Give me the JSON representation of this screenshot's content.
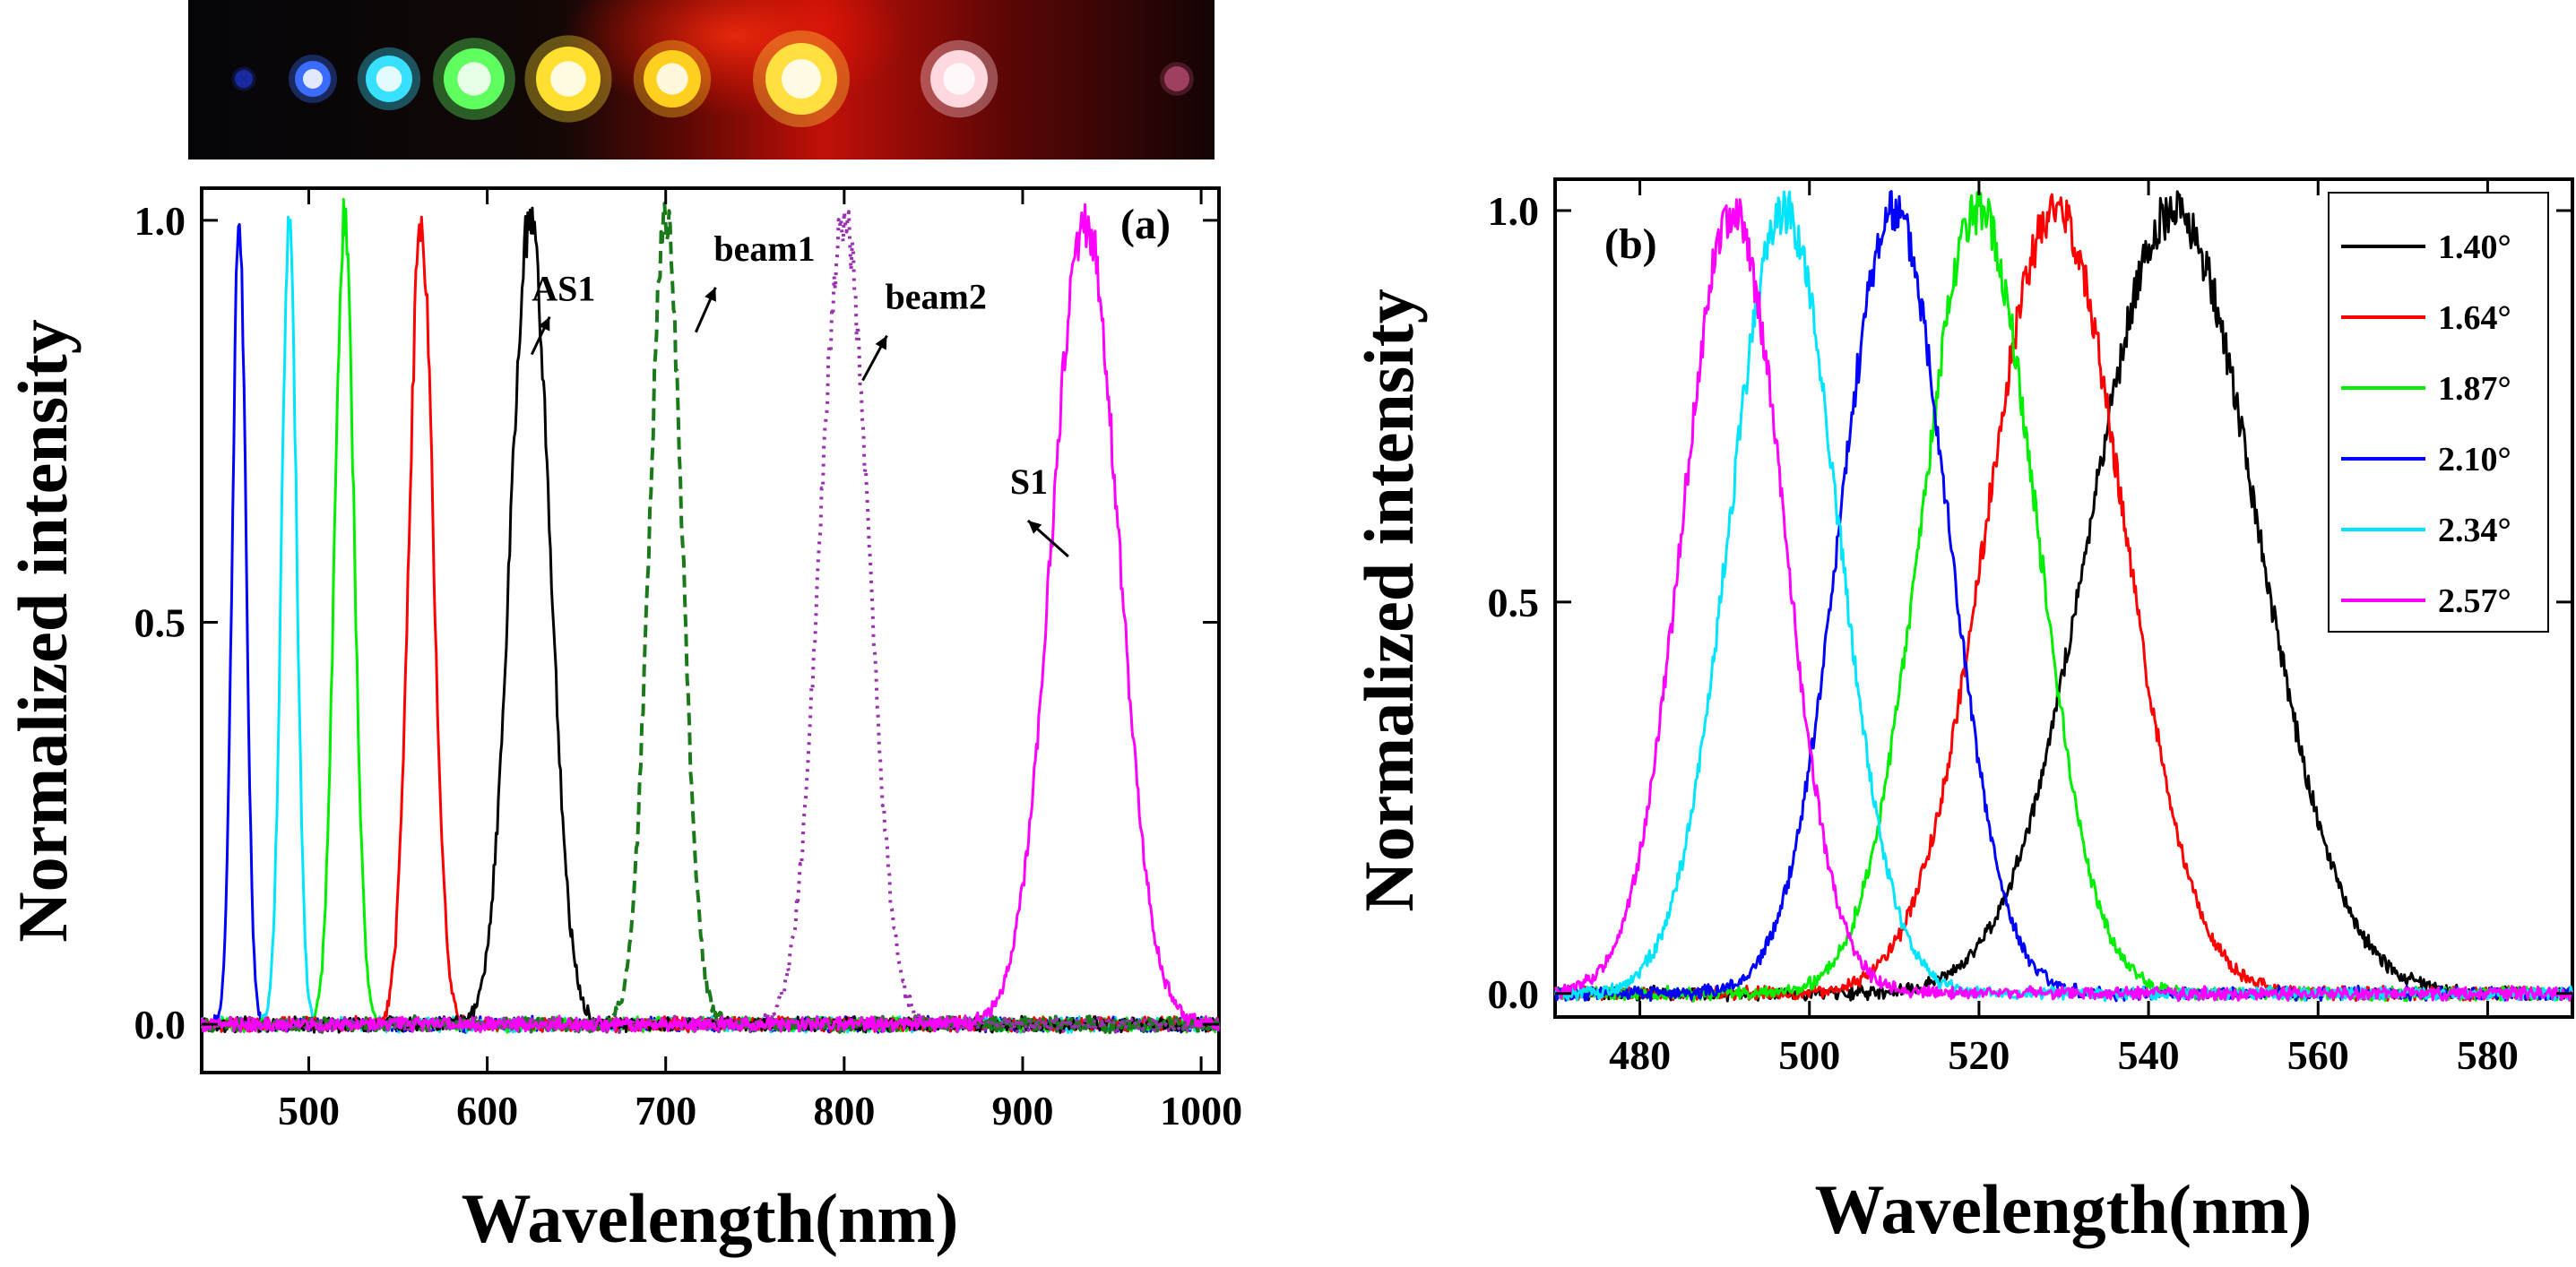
{
  "chart_data": [
    {
      "panel": "a",
      "type": "line",
      "panel_label": "(a)",
      "xlabel": "Wavelength(nm)",
      "ylabel": "Normalized intensity",
      "xlim": [
        440,
        1010
      ],
      "ylim": [
        -0.06,
        1.04
      ],
      "xticks": [
        500,
        600,
        700,
        800,
        900,
        1000
      ],
      "xtick_labels": [
        "500",
        "600",
        "700",
        "800",
        "900",
        "1000"
      ],
      "yticks": [
        0.0,
        0.5,
        1.0
      ],
      "ytick_labels": [
        "0.0",
        "0.5",
        "1.0"
      ],
      "series": [
        {
          "name": "blue",
          "color": "#0000ff",
          "style": "solid",
          "center": 461,
          "fwhm": 9,
          "peak": 1.0
        },
        {
          "name": "cyan",
          "color": "#00e5ff",
          "style": "solid",
          "center": 489,
          "fwhm": 10,
          "peak": 1.0
        },
        {
          "name": "green",
          "color": "#00ee00",
          "style": "solid",
          "center": 520,
          "fwhm": 13,
          "peak": 1.0
        },
        {
          "name": "red",
          "color": "#ff0000",
          "style": "solid",
          "center": 563,
          "fwhm": 16,
          "peak": 1.0
        },
        {
          "name": "AS1",
          "color": "#000000",
          "style": "solid",
          "center": 624,
          "fwhm": 26,
          "peak": 1.0
        },
        {
          "name": "beam1",
          "color": "#1a7a1a",
          "style": "dash",
          "center": 700,
          "fwhm": 22,
          "peak": 1.0
        },
        {
          "name": "beam2",
          "color": "#9b30b0",
          "style": "dot",
          "center": 800,
          "fwhm": 32,
          "peak": 1.0
        },
        {
          "name": "S1",
          "color": "#ff00ff",
          "style": "solid",
          "center": 935,
          "fwhm": 44,
          "peak": 1.0
        }
      ],
      "annotations": [
        {
          "text": "AS1",
          "x": 640,
          "y": 0.9
        },
        {
          "text": "beam1",
          "x": 742,
          "y": 0.95
        },
        {
          "text": "beam2",
          "x": 838,
          "y": 0.89
        },
        {
          "text": "S1",
          "x": 908,
          "y": 0.66
        }
      ]
    },
    {
      "panel": "b",
      "type": "line",
      "panel_label": "(b)",
      "xlabel": "Wavelength(nm)",
      "ylabel": "Normalized intensity",
      "xlim": [
        470,
        590
      ],
      "ylim": [
        -0.03,
        1.04
      ],
      "xticks": [
        480,
        500,
        520,
        540,
        560,
        580
      ],
      "xtick_labels": [
        "480",
        "500",
        "520",
        "540",
        "560",
        "580"
      ],
      "yticks": [
        0.0,
        0.5,
        1.0
      ],
      "ytick_labels": [
        "0.0",
        "0.5",
        "1.0"
      ],
      "legend_position": "top-right",
      "series": [
        {
          "name": "1.40",
          "label": "1.40°",
          "color": "#000000",
          "center": 543,
          "fwhm": 23,
          "peak": 1.0
        },
        {
          "name": "1.64",
          "label": "1.64°",
          "color": "#ff0000",
          "center": 529,
          "fwhm": 19,
          "peak": 1.0
        },
        {
          "name": "1.87",
          "label": "1.87°",
          "color": "#00ee00",
          "center": 520,
          "fwhm": 16,
          "peak": 1.0
        },
        {
          "name": "2.10",
          "label": "2.10°",
          "color": "#0000ff",
          "center": 510,
          "fwhm": 15,
          "peak": 1.0
        },
        {
          "name": "2.34",
          "label": "2.34°",
          "color": "#00e5ff",
          "center": 497,
          "fwhm": 15,
          "peak": 1.0
        },
        {
          "name": "2.57",
          "label": "2.57°",
          "color": "#ff00ff",
          "center": 491,
          "fwhm": 14,
          "peak": 1.0
        }
      ]
    }
  ],
  "photo_strip": {
    "spots": [
      {
        "color": "#1a2aa0"
      },
      {
        "color": "#3a6cff"
      },
      {
        "color": "#38e0ff"
      },
      {
        "color": "#60ff60"
      },
      {
        "color": "#ffe030"
      },
      {
        "color": "#ffd020"
      },
      {
        "color": "#ffe040"
      },
      {
        "color": "#ffd8e0"
      },
      {
        "color": "#a04060"
      }
    ]
  }
}
